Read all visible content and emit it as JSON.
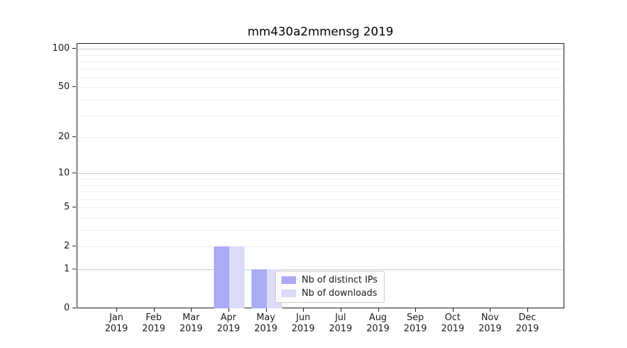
{
  "title": "mm430a2mmensg 2019",
  "chart_data": {
    "type": "bar",
    "title": "mm430a2mmensg 2019",
    "xlabel": "",
    "ylabel": "",
    "categories": [
      "Jan 2019",
      "Feb 2019",
      "Mar 2019",
      "Apr 2019",
      "May 2019",
      "Jun 2019",
      "Jul 2019",
      "Aug 2019",
      "Sep 2019",
      "Oct 2019",
      "Nov 2019",
      "Dec 2019"
    ],
    "series": [
      {
        "name": "Nb of distinct IPs",
        "color": "#aaaaf5",
        "values": [
          0,
          0,
          0,
          2,
          1,
          0,
          0,
          0,
          0,
          0,
          0,
          0
        ]
      },
      {
        "name": "Nb of downloads",
        "color": "#dcdcf8",
        "values": [
          0,
          0,
          0,
          2,
          1,
          0,
          0,
          0,
          0,
          0,
          0,
          0
        ]
      }
    ],
    "yscale": "log1p",
    "ylim": [
      0,
      110
    ],
    "yticks": [
      0,
      1,
      2,
      5,
      10,
      20,
      50,
      100
    ],
    "grid": "horizontal only; major lines at 1, 10, 100; minor log subdivisions",
    "legend_position": "inside axes, lower center-right"
  },
  "y_axis": {
    "tick_values": [
      100,
      50,
      20,
      10,
      5,
      2,
      1,
      0
    ],
    "tick_labels": [
      "100",
      "50",
      "20",
      "10",
      "5",
      "2",
      "1",
      "0"
    ],
    "gridlines_major": [
      1,
      10,
      100
    ],
    "gridlines_minor": [
      2,
      3,
      4,
      5,
      6,
      7,
      8,
      9,
      20,
      30,
      40,
      50,
      60,
      70,
      80,
      90
    ]
  },
  "x_axis": {
    "months": [
      "Jan",
      "Feb",
      "Mar",
      "Apr",
      "May",
      "Jun",
      "Jul",
      "Aug",
      "Sep",
      "Oct",
      "Nov",
      "Dec"
    ],
    "year": "2019"
  },
  "colors": {
    "distinct_ips_bar": "#aaaaf5",
    "downloads_bar": "#dcdcf8",
    "grid_major": "#cccccc",
    "grid_minor": "#ededed",
    "axis_spine": "#1a1a1a",
    "background": "#ffffff"
  }
}
